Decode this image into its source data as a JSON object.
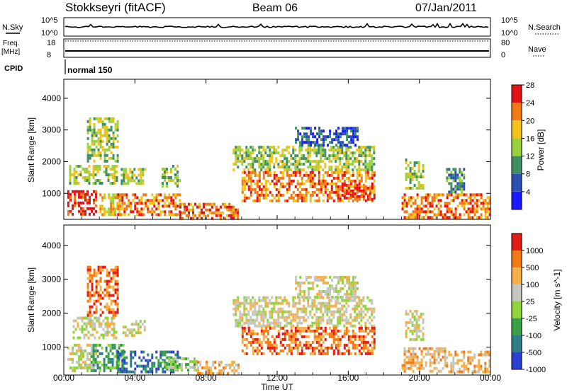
{
  "header": {
    "station": "Stokkseyri (fitACF)",
    "beam": "Beam 06",
    "date": "07/Jan/2011"
  },
  "nsky": {
    "label": "N.Sky",
    "tick_high": "10^5",
    "tick_low": "10^0",
    "right_label": "N.Search",
    "right_tick_high": "10^5",
    "right_tick_low": "10^0"
  },
  "freq": {
    "label_line1": "Freq.",
    "label_line2": "[MHz]",
    "tick_high": "18",
    "tick_low": "8",
    "right_label": "Nave",
    "right_tick_high": "80",
    "right_tick_low": "0"
  },
  "cpid": {
    "label": "CPID",
    "value": "normal 150"
  },
  "chart_data": [
    {
      "type": "heatmap",
      "panel": "power",
      "ylabel": "Slant Range [km]",
      "yticks": [
        "1000",
        "2000",
        "3000",
        "4000"
      ],
      "ylim": [
        180,
        4600
      ],
      "xlim": [
        0,
        24
      ],
      "colorbar_label": "Power [dB]",
      "colorbar_ticks": [
        "4",
        "8",
        "12",
        "16",
        "20",
        "24",
        "28"
      ],
      "colors": [
        "#1a1aff",
        "#2b4fb0",
        "#3f8f63",
        "#9ad13c",
        "#f2c21a",
        "#f07a14",
        "#e41414"
      ],
      "regions": [
        {
          "t0": 0.2,
          "t1": 1.8,
          "r0": 300,
          "r1": 1100,
          "level": 6
        },
        {
          "t0": 0.3,
          "t1": 3.0,
          "r0": 1300,
          "r1": 1900,
          "level": 3
        },
        {
          "t0": 1.3,
          "t1": 3.0,
          "r0": 2000,
          "r1": 3400,
          "level": 3
        },
        {
          "t0": 2.0,
          "t1": 3.2,
          "r0": 300,
          "r1": 1000,
          "level": 4
        },
        {
          "t0": 3.0,
          "t1": 6.5,
          "r0": 300,
          "r1": 1000,
          "level": 5
        },
        {
          "t0": 3.2,
          "t1": 4.6,
          "r0": 1300,
          "r1": 1800,
          "level": 3
        },
        {
          "t0": 5.5,
          "t1": 6.5,
          "r0": 1200,
          "r1": 1900,
          "level": 3
        },
        {
          "t0": 6.5,
          "t1": 9.8,
          "r0": 250,
          "r1": 700,
          "level": 5
        },
        {
          "t0": 9.5,
          "t1": 17.5,
          "r0": 1700,
          "r1": 2500,
          "level": 3
        },
        {
          "t0": 10.0,
          "t1": 17.5,
          "r0": 800,
          "r1": 1700,
          "level": 5
        },
        {
          "t0": 13.0,
          "t1": 16.5,
          "r0": 2500,
          "r1": 3100,
          "level": 1
        },
        {
          "t0": 15.5,
          "t1": 17.3,
          "r0": 800,
          "r1": 1300,
          "level": 6
        },
        {
          "t0": 19.0,
          "t1": 24.0,
          "r0": 250,
          "r1": 1000,
          "level": 5
        },
        {
          "t0": 19.2,
          "t1": 20.2,
          "r0": 1200,
          "r1": 2100,
          "level": 3
        },
        {
          "t0": 21.5,
          "t1": 22.5,
          "r0": 1000,
          "r1": 1800,
          "level": 2
        }
      ]
    },
    {
      "type": "heatmap",
      "panel": "velocity",
      "ylabel": "Slant Range [km]",
      "yticks": [
        "1000",
        "2000",
        "3000",
        "4000"
      ],
      "ylim": [
        180,
        4600
      ],
      "xlabel": "Time UT",
      "xticks": [
        "00:00",
        "04:00",
        "08:00",
        "12:00",
        "16:00",
        "20:00",
        "00:00"
      ],
      "xlim": [
        0,
        24
      ],
      "colorbar_label": "Velocity [m s^-1]",
      "colorbar_ticks": [
        "1000",
        "500",
        "100",
        "25",
        "-25",
        "-100",
        "-500",
        "-1000"
      ],
      "colors": [
        "#2b3fd0",
        "#2e7e8a",
        "#3aa048",
        "#8fd43a",
        "#c6c6c0",
        "#f5b04a",
        "#f27a10",
        "#e01c14"
      ],
      "regions": [
        {
          "t0": 0.2,
          "t1": 1.8,
          "r0": 300,
          "r1": 1100,
          "level": 4
        },
        {
          "t0": 0.5,
          "t1": 3.0,
          "r0": 1300,
          "r1": 1900,
          "level": 4
        },
        {
          "t0": 1.3,
          "t1": 3.0,
          "r0": 1900,
          "r1": 3400,
          "level": 6
        },
        {
          "t0": 1.5,
          "t1": 3.4,
          "r0": 300,
          "r1": 1100,
          "level": 2
        },
        {
          "t0": 3.0,
          "t1": 6.5,
          "r0": 300,
          "r1": 900,
          "level": 1
        },
        {
          "t0": 3.3,
          "t1": 4.6,
          "r0": 1300,
          "r1": 1800,
          "level": 4
        },
        {
          "t0": 5.5,
          "t1": 7.5,
          "r0": 300,
          "r1": 700,
          "level": 3
        },
        {
          "t0": 7.5,
          "t1": 9.8,
          "r0": 250,
          "r1": 600,
          "level": 5
        },
        {
          "t0": 9.5,
          "t1": 17.5,
          "r0": 1600,
          "r1": 2500,
          "level": 4
        },
        {
          "t0": 10.0,
          "t1": 17.5,
          "r0": 800,
          "r1": 1600,
          "level": 6
        },
        {
          "t0": 13.0,
          "t1": 16.5,
          "r0": 2500,
          "r1": 3100,
          "level": 4
        },
        {
          "t0": 19.0,
          "t1": 21.5,
          "r0": 300,
          "r1": 1000,
          "level": 5
        },
        {
          "t0": 21.5,
          "t1": 24.0,
          "r0": 300,
          "r1": 900,
          "level": 5
        },
        {
          "t0": 19.2,
          "t1": 20.2,
          "r0": 1200,
          "r1": 2100,
          "level": 4
        }
      ]
    }
  ]
}
